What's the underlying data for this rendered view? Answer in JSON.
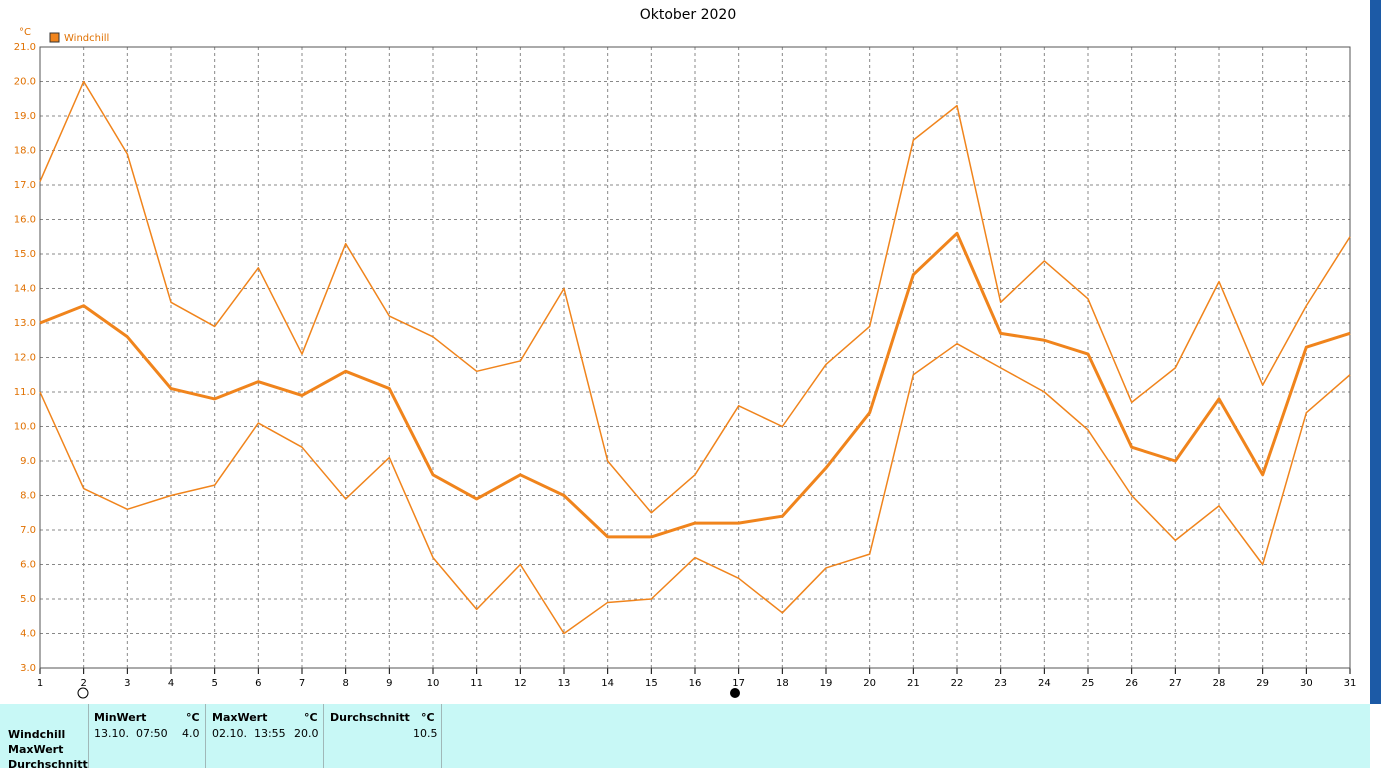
{
  "chart_data": {
    "type": "line",
    "title": "Oktober 2020",
    "y_unit": "°C",
    "legend_label": "Windchill",
    "legend_color": "#f0841c",
    "x": [
      1,
      2,
      3,
      4,
      5,
      6,
      7,
      8,
      9,
      10,
      11,
      12,
      13,
      14,
      15,
      16,
      17,
      18,
      19,
      20,
      21,
      22,
      23,
      24,
      25,
      26,
      27,
      28,
      29,
      30,
      31
    ],
    "xlim": [
      1,
      31
    ],
    "xticks": [
      1,
      2,
      3,
      4,
      5,
      6,
      7,
      8,
      9,
      10,
      11,
      12,
      13,
      14,
      15,
      16,
      17,
      18,
      19,
      20,
      21,
      22,
      23,
      24,
      25,
      26,
      27,
      28,
      29,
      30,
      31
    ],
    "ylim": [
      3,
      21
    ],
    "yticks": [
      {
        "value": 3,
        "label": "3.0"
      },
      {
        "value": 4,
        "label": "4.0"
      },
      {
        "value": 5,
        "label": "5.0"
      },
      {
        "value": 6,
        "label": "6.0"
      },
      {
        "value": 7,
        "label": "7.0"
      },
      {
        "value": 8,
        "label": "8.0"
      },
      {
        "value": 9,
        "label": "9.0"
      },
      {
        "value": 10,
        "label": "10.0"
      },
      {
        "value": 11,
        "label": "11.0"
      },
      {
        "value": 12,
        "label": "12.0"
      },
      {
        "value": 13,
        "label": "13.0"
      },
      {
        "value": 14,
        "label": "14.0"
      },
      {
        "value": 15,
        "label": "15.0"
      },
      {
        "value": 16,
        "label": "16.0"
      },
      {
        "value": 17,
        "label": "17.0"
      },
      {
        "value": 18,
        "label": "18.0"
      },
      {
        "value": 19,
        "label": "19.0"
      },
      {
        "value": 20,
        "label": "20.0"
      },
      {
        "value": 21,
        "label": "21.0"
      }
    ],
    "grid": true,
    "series": [
      {
        "color": "#f0841c",
        "line_width": 1.5,
        "values": [
          17.1,
          20.0,
          17.9,
          13.6,
          12.9,
          14.6,
          12.1,
          15.3,
          13.2,
          12.6,
          11.6,
          11.9,
          14.0,
          9.0,
          7.5,
          8.6,
          10.6,
          10.0,
          11.8,
          12.9,
          18.3,
          19.3,
          13.6,
          14.8,
          13.7,
          10.7,
          11.7,
          14.2,
          11.2,
          13.5,
          15.5
        ]
      },
      {
        "color": "#f0841c",
        "line_width": 3,
        "values": [
          13.0,
          13.5,
          12.6,
          11.1,
          10.8,
          11.3,
          10.9,
          11.6,
          11.1,
          8.6,
          7.9,
          8.6,
          8.0,
          6.8,
          6.8,
          7.2,
          7.2,
          7.4,
          8.8,
          10.4,
          14.4,
          15.6,
          12.7,
          12.5,
          12.1,
          9.4,
          9.0,
          10.8,
          8.6,
          12.3,
          12.7
        ]
      },
      {
        "color": "#f0841c",
        "line_width": 1.5,
        "values": [
          11.0,
          8.2,
          7.6,
          8.0,
          8.3,
          10.1,
          9.4,
          7.9,
          9.1,
          6.2,
          4.7,
          6.0,
          4.0,
          4.9,
          5.0,
          6.2,
          5.6,
          4.6,
          5.9,
          6.3,
          11.5,
          12.4,
          11.7,
          11.0,
          9.9,
          8.0,
          6.7,
          7.7,
          6.0,
          10.4,
          11.5
        ]
      }
    ]
  },
  "summary_table": {
    "row_labels": [
      "Windchill",
      "MaxWert",
      "Durchschnitt"
    ],
    "columns": [
      {
        "header": "MinWert",
        "unit": "°C",
        "time": "13.10.  07:50",
        "value": "4.0"
      },
      {
        "header": "MaxWert",
        "unit": "°C",
        "time": "02.10.  13:55",
        "value": "20.0"
      },
      {
        "header": "Durchschnitt",
        "unit": "°C",
        "value": "10.5"
      }
    ]
  }
}
